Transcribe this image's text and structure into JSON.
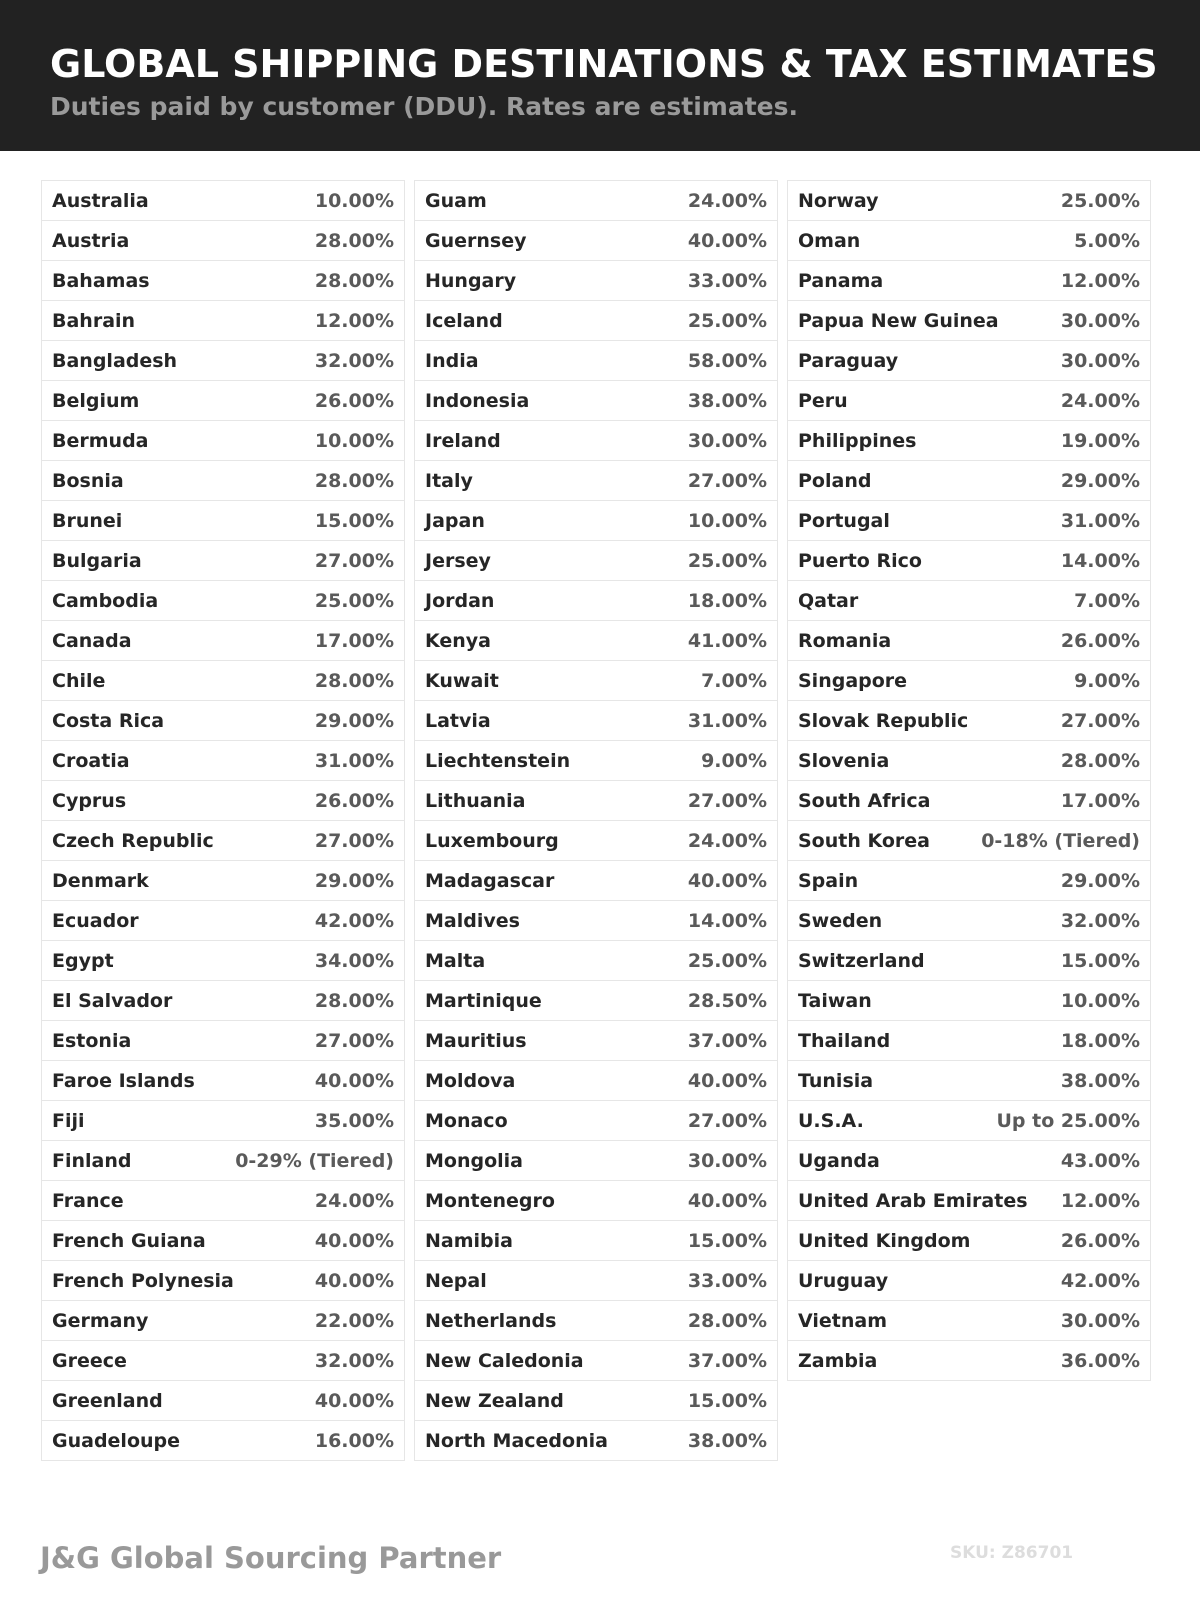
{
  "header": {
    "title": "GLOBAL SHIPPING DESTINATIONS & TAX ESTIMATES",
    "subtitle": "Duties paid by customer (DDU). Rates are estimates."
  },
  "columns": [
    [
      {
        "country": "Australia",
        "rate": "10.00%"
      },
      {
        "country": "Austria",
        "rate": "28.00%"
      },
      {
        "country": "Bahamas",
        "rate": "28.00%"
      },
      {
        "country": "Bahrain",
        "rate": "12.00%"
      },
      {
        "country": "Bangladesh",
        "rate": "32.00%"
      },
      {
        "country": "Belgium",
        "rate": "26.00%"
      },
      {
        "country": "Bermuda",
        "rate": "10.00%"
      },
      {
        "country": "Bosnia",
        "rate": "28.00%"
      },
      {
        "country": "Brunei",
        "rate": "15.00%"
      },
      {
        "country": "Bulgaria",
        "rate": "27.00%"
      },
      {
        "country": "Cambodia",
        "rate": "25.00%"
      },
      {
        "country": "Canada",
        "rate": "17.00%"
      },
      {
        "country": "Chile",
        "rate": "28.00%"
      },
      {
        "country": "Costa Rica",
        "rate": "29.00%"
      },
      {
        "country": "Croatia",
        "rate": "31.00%"
      },
      {
        "country": "Cyprus",
        "rate": "26.00%"
      },
      {
        "country": "Czech Republic",
        "rate": "27.00%"
      },
      {
        "country": "Denmark",
        "rate": "29.00%"
      },
      {
        "country": "Ecuador",
        "rate": "42.00%"
      },
      {
        "country": "Egypt",
        "rate": "34.00%"
      },
      {
        "country": "El Salvador",
        "rate": "28.00%"
      },
      {
        "country": "Estonia",
        "rate": "27.00%"
      },
      {
        "country": "Faroe Islands",
        "rate": "40.00%"
      },
      {
        "country": "Fiji",
        "rate": "35.00%"
      },
      {
        "country": "Finland",
        "rate": "0-29% (Tiered)"
      },
      {
        "country": "France",
        "rate": "24.00%"
      },
      {
        "country": "French Guiana",
        "rate": "40.00%"
      },
      {
        "country": "French Polynesia",
        "rate": "40.00%"
      },
      {
        "country": "Germany",
        "rate": "22.00%"
      },
      {
        "country": "Greece",
        "rate": "32.00%"
      },
      {
        "country": "Greenland",
        "rate": "40.00%"
      },
      {
        "country": "Guadeloupe",
        "rate": "16.00%"
      }
    ],
    [
      {
        "country": "Guam",
        "rate": "24.00%"
      },
      {
        "country": "Guernsey",
        "rate": "40.00%"
      },
      {
        "country": "Hungary",
        "rate": "33.00%"
      },
      {
        "country": "Iceland",
        "rate": "25.00%"
      },
      {
        "country": "India",
        "rate": "58.00%"
      },
      {
        "country": "Indonesia",
        "rate": "38.00%"
      },
      {
        "country": "Ireland",
        "rate": "30.00%"
      },
      {
        "country": "Italy",
        "rate": "27.00%"
      },
      {
        "country": "Japan",
        "rate": "10.00%"
      },
      {
        "country": "Jersey",
        "rate": "25.00%"
      },
      {
        "country": "Jordan",
        "rate": "18.00%"
      },
      {
        "country": "Kenya",
        "rate": "41.00%"
      },
      {
        "country": "Kuwait",
        "rate": "7.00%"
      },
      {
        "country": "Latvia",
        "rate": "31.00%"
      },
      {
        "country": "Liechtenstein",
        "rate": "9.00%"
      },
      {
        "country": "Lithuania",
        "rate": "27.00%"
      },
      {
        "country": "Luxembourg",
        "rate": "24.00%"
      },
      {
        "country": "Madagascar",
        "rate": "40.00%"
      },
      {
        "country": "Maldives",
        "rate": "14.00%"
      },
      {
        "country": "Malta",
        "rate": "25.00%"
      },
      {
        "country": "Martinique",
        "rate": "28.50%"
      },
      {
        "country": "Mauritius",
        "rate": "37.00%"
      },
      {
        "country": "Moldova",
        "rate": "40.00%"
      },
      {
        "country": "Monaco",
        "rate": "27.00%"
      },
      {
        "country": "Mongolia",
        "rate": "30.00%"
      },
      {
        "country": "Montenegro",
        "rate": "40.00%"
      },
      {
        "country": "Namibia",
        "rate": "15.00%"
      },
      {
        "country": "Nepal",
        "rate": "33.00%"
      },
      {
        "country": "Netherlands",
        "rate": "28.00%"
      },
      {
        "country": "New Caledonia",
        "rate": "37.00%"
      },
      {
        "country": "New Zealand",
        "rate": "15.00%"
      },
      {
        "country": "North Macedonia",
        "rate": "38.00%"
      }
    ],
    [
      {
        "country": "Norway",
        "rate": "25.00%"
      },
      {
        "country": "Oman",
        "rate": "5.00%"
      },
      {
        "country": "Panama",
        "rate": "12.00%"
      },
      {
        "country": "Papua New Guinea",
        "rate": "30.00%"
      },
      {
        "country": "Paraguay",
        "rate": "30.00%"
      },
      {
        "country": "Peru",
        "rate": "24.00%"
      },
      {
        "country": "Philippines",
        "rate": "19.00%"
      },
      {
        "country": "Poland",
        "rate": "29.00%"
      },
      {
        "country": "Portugal",
        "rate": "31.00%"
      },
      {
        "country": "Puerto Rico",
        "rate": "14.00%"
      },
      {
        "country": "Qatar",
        "rate": "7.00%"
      },
      {
        "country": "Romania",
        "rate": "26.00%"
      },
      {
        "country": "Singapore",
        "rate": "9.00%"
      },
      {
        "country": "Slovak Republic",
        "rate": "27.00%"
      },
      {
        "country": "Slovenia",
        "rate": "28.00%"
      },
      {
        "country": "South Africa",
        "rate": "17.00%"
      },
      {
        "country": "South Korea",
        "rate": "0-18% (Tiered)"
      },
      {
        "country": "Spain",
        "rate": "29.00%"
      },
      {
        "country": "Sweden",
        "rate": "32.00%"
      },
      {
        "country": "Switzerland",
        "rate": "15.00%"
      },
      {
        "country": "Taiwan",
        "rate": "10.00%"
      },
      {
        "country": "Thailand",
        "rate": "18.00%"
      },
      {
        "country": "Tunisia",
        "rate": "38.00%"
      },
      {
        "country": "U.S.A.",
        "rate": "Up to 25.00%"
      },
      {
        "country": "Uganda",
        "rate": "43.00%"
      },
      {
        "country": "United Arab Emirates",
        "rate": "12.00%"
      },
      {
        "country": "United Kingdom",
        "rate": "26.00%"
      },
      {
        "country": "Uruguay",
        "rate": "42.00%"
      },
      {
        "country": "Vietnam",
        "rate": "30.00%"
      },
      {
        "country": "Zambia",
        "rate": "36.00%"
      }
    ]
  ],
  "footer": {
    "brand": "J&G Global Sourcing Partner",
    "sku": "SKU: Z86701"
  }
}
